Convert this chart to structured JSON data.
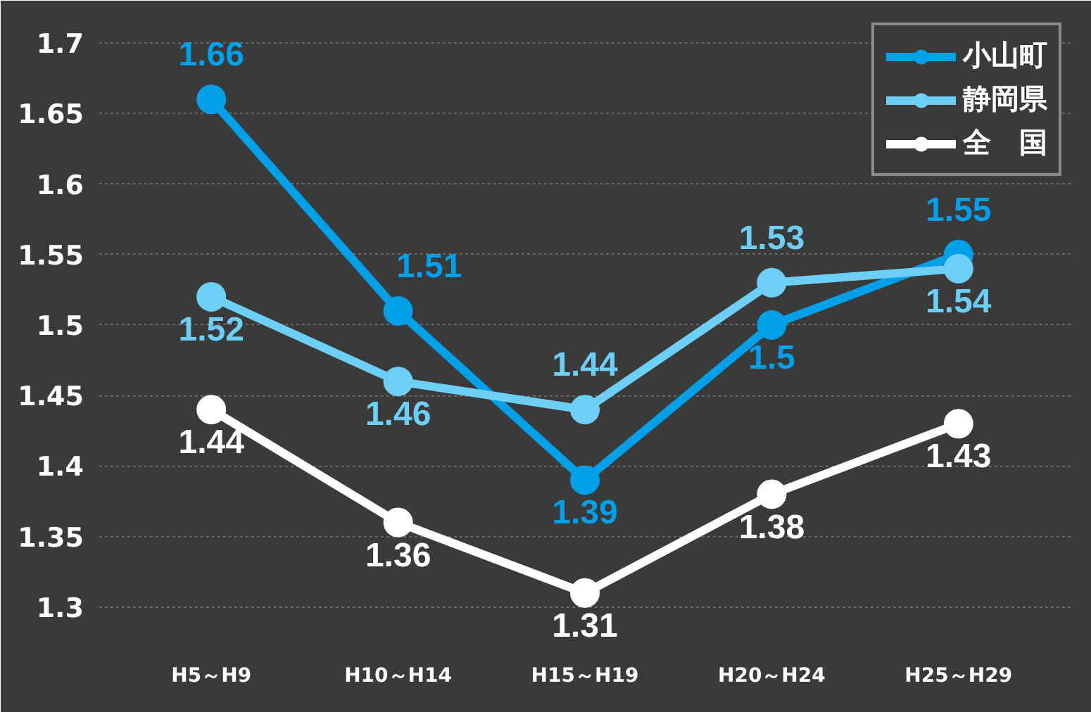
{
  "chart_data": {
    "type": "line",
    "categories": [
      "H5～H9",
      "H10～H14",
      "H15～H19",
      "H20～H24",
      "H25～H29"
    ],
    "series": [
      {
        "name": "小山町",
        "color": "#00a0e9",
        "values": [
          1.66,
          1.51,
          1.39,
          1.5,
          1.55
        ]
      },
      {
        "name": "静岡県",
        "color": "#6dcff6",
        "values": [
          1.52,
          1.46,
          1.44,
          1.53,
          1.54
        ]
      },
      {
        "name": "全　国",
        "color": "#ffffff",
        "values": [
          1.44,
          1.36,
          1.31,
          1.38,
          1.43
        ]
      }
    ],
    "ylim": [
      1.27,
      1.72
    ],
    "yticks": [
      1.3,
      1.35,
      1.4,
      1.45,
      1.5,
      1.55,
      1.6,
      1.65,
      1.7
    ],
    "grid": "y",
    "legend": "top right",
    "marker": "circle",
    "line_style": "solid",
    "data_labels": true
  }
}
